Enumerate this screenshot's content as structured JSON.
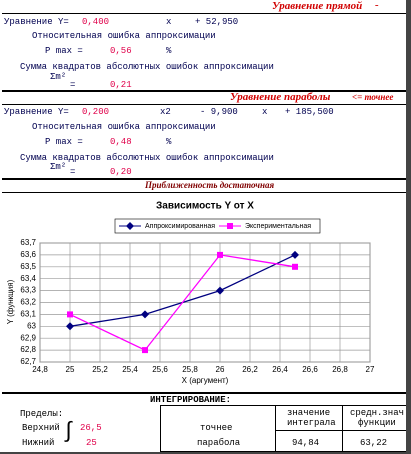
{
  "line_section": {
    "title": "Уравнение прямой",
    "dash": "-",
    "eq_label": "Уравнение Y=",
    "a": "0,400",
    "x": "x",
    "b": "+ 52,950",
    "rel_error_label": "Относительная ошибка аппроксимации",
    "pmax_label": "P max =",
    "pmax": "0,56",
    "percent": "%",
    "sum_label": "Сумма квадратов абсолютных ошибок аппроксимации",
    "sigma": "Σm²",
    "equals": "=",
    "sum": "0,21"
  },
  "parabola_section": {
    "title": "Уравнение параболы",
    "note": "<= точнее",
    "eq_label": "Уравнение Y=",
    "a": "0,200",
    "x2": "x2",
    "b": "- 9,900",
    "x": "x",
    "c": "+ 185,500",
    "rel_error_label": "Относительная ошибка аппроксимации",
    "pmax_label": "P max =",
    "pmax": "0,48",
    "percent": "%",
    "sum_label": "Сумма квадратов абсолютных ошибок аппроксимации",
    "sigma": "Σm²",
    "equals": "=",
    "sum": "0,20"
  },
  "verdict": "Приближенность достаточная",
  "chart_data": {
    "type": "line",
    "title": "Зависимость Y от X",
    "x_label": "X (аргумент)",
    "y_label": "Y (функция)",
    "x": [
      25,
      25.5,
      26,
      26.5
    ],
    "series": [
      {
        "name": "Аппроксимированная",
        "color": "#000080",
        "marker": "diamond",
        "values": [
          63.0,
          63.1,
          63.3,
          63.6
        ]
      },
      {
        "name": "Экспериментальная",
        "color": "#ff00ff",
        "marker": "square",
        "values": [
          63.1,
          62.8,
          63.6,
          63.5
        ]
      }
    ],
    "xlim": [
      24.8,
      27
    ],
    "xticks": [
      {
        "value": 24.8,
        "label": "24,8"
      },
      25,
      {
        "value": 25.2,
        "label": "25,2"
      },
      {
        "value": 25.4,
        "label": "25,4"
      },
      {
        "value": 25.6,
        "label": "25,6"
      },
      {
        "value": 25.8,
        "label": "25,8"
      },
      26,
      {
        "value": 26.2,
        "label": "26,2"
      },
      {
        "value": 26.4,
        "label": "26,4"
      },
      {
        "value": 26.6,
        "label": "26,6"
      },
      {
        "value": 26.8,
        "label": "26,8"
      },
      27
    ],
    "ylim": [
      62.7,
      63.7
    ],
    "yticks": [
      {
        "value": 62.7,
        "label": "62,7"
      },
      {
        "value": 62.8,
        "label": "62,8"
      },
      {
        "value": 62.9,
        "label": "62,9"
      },
      63,
      {
        "value": 63.1,
        "label": "63,1"
      },
      {
        "value": 63.2,
        "label": "63,2"
      },
      {
        "value": 63.3,
        "label": "63,3"
      },
      {
        "value": 63.4,
        "label": "63,4"
      },
      {
        "value": 63.5,
        "label": "63,5"
      },
      {
        "value": 63.6,
        "label": "63,6"
      },
      {
        "value": 63.7,
        "label": "63,7"
      }
    ],
    "grid": true,
    "legend": "top"
  },
  "integration": {
    "title": "ИНТЕГРИРОВАНИЕ:",
    "limits_label": "Пределы:",
    "upper_label": "Верхний",
    "integral_sign": "∫",
    "upper": "26,5",
    "lower_label": "Нижний",
    "lower": "25",
    "better_label": "точнее",
    "better": "парабола",
    "integral_header": [
      "значение",
      "интеграла"
    ],
    "mean_header": [
      "средн.знач",
      "функции"
    ],
    "integral": "94,84",
    "mean": "63,22"
  }
}
